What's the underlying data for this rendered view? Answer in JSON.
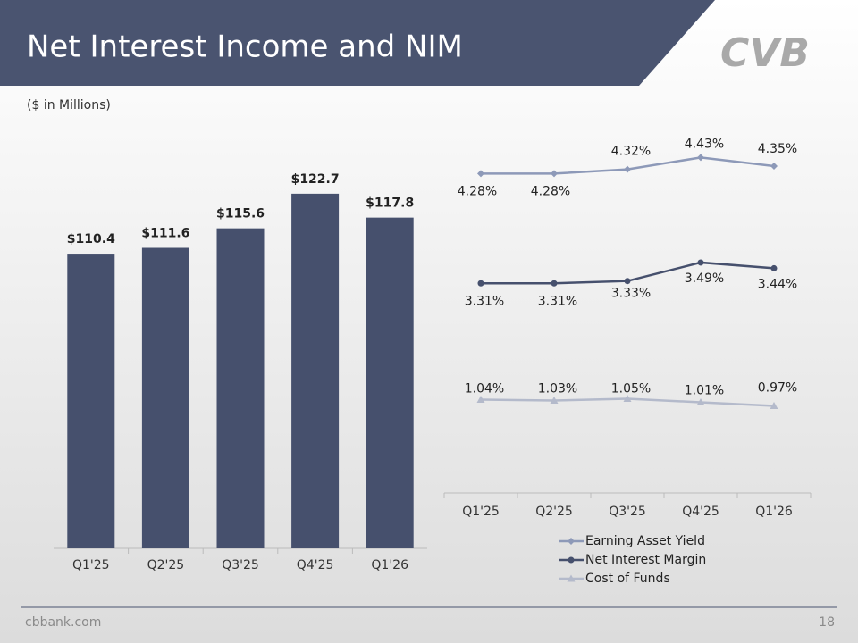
{
  "header": {
    "title": "Net Interest Income and NIM",
    "logo": "CVB"
  },
  "footer": {
    "site": "cbbank.com",
    "page": "18"
  },
  "chart_data": [
    {
      "type": "bar",
      "subtitle": "($ in Millions)",
      "categories": [
        "Q1'25",
        "Q2'25",
        "Q3'25",
        "Q4'25",
        "Q1'26"
      ],
      "values": [
        110.4,
        111.6,
        115.6,
        122.7,
        117.8
      ],
      "value_labels": [
        "$110.4",
        "$111.6",
        "$115.6",
        "$122.7",
        "$117.8"
      ],
      "color": "#46506d",
      "ylim": [
        50,
        130
      ]
    },
    {
      "type": "line",
      "categories": [
        "Q1'25",
        "Q2'25",
        "Q3'25",
        "Q4'25",
        "Q1'26"
      ],
      "legend": "bottom",
      "series": [
        {
          "name": "Earning Asset Yield",
          "color": "#8d99b8",
          "marker": "diamond",
          "values": [
            4.28,
            4.28,
            4.32,
            4.43,
            4.35
          ],
          "value_labels": [
            "4.28%",
            "4.28%",
            "4.32%",
            "4.43%",
            "4.35%"
          ],
          "ylim": [
            1.3,
            4.65
          ]
        },
        {
          "name": "Net Interest Margin",
          "color": "#46506d",
          "marker": "circle",
          "values": [
            3.31,
            3.31,
            3.33,
            3.49,
            3.44
          ],
          "value_labels": [
            "3.31%",
            "3.31%",
            "3.33%",
            "3.49%",
            "3.44%"
          ],
          "ylim": [
            1.5,
            4.6
          ]
        },
        {
          "name": "Cost of Funds",
          "color": "#b4bacb",
          "marker": "triangle",
          "values": [
            1.04,
            1.03,
            1.05,
            1.01,
            0.97
          ],
          "value_labels": [
            "1.04%",
            "1.03%",
            "1.05%",
            "1.01%",
            "0.97%"
          ],
          "ylim": [
            0,
            4
          ]
        }
      ]
    }
  ]
}
